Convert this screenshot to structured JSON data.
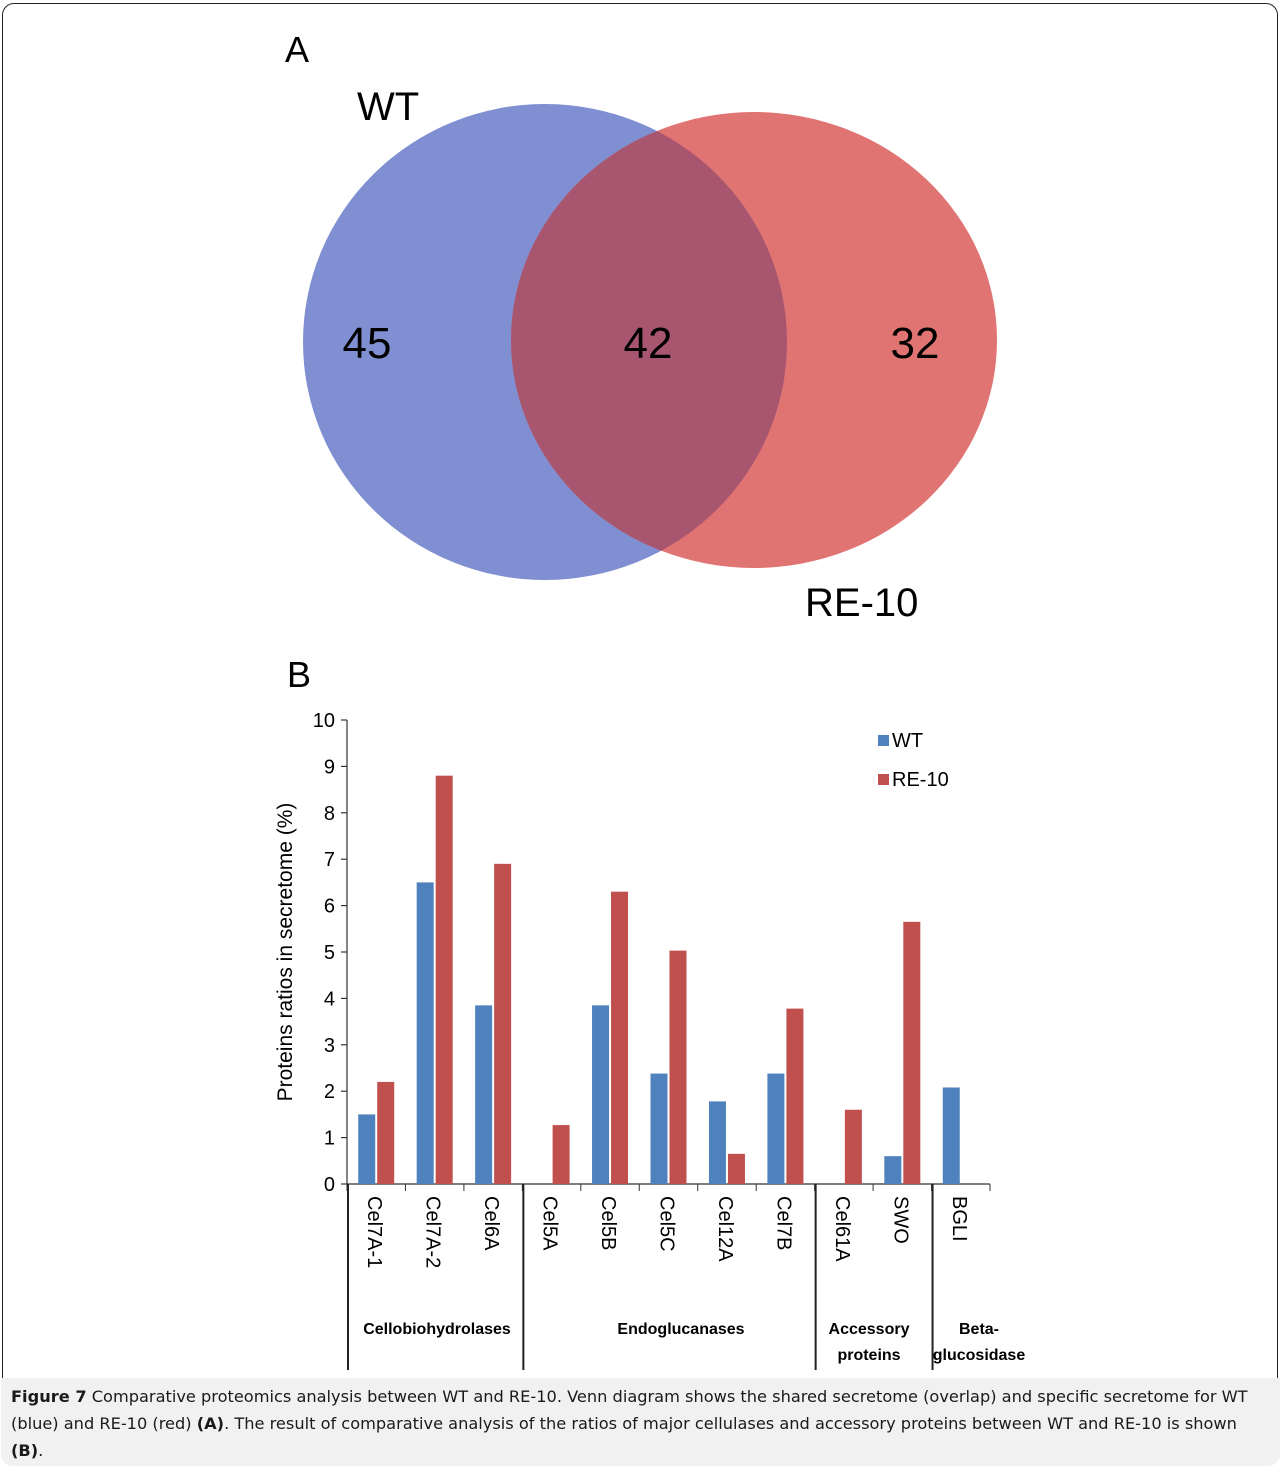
{
  "figure": {
    "panel_a_label": "A",
    "panel_b_label": "B"
  },
  "venn": {
    "set1_label": "WT",
    "set2_label": "RE-10",
    "only_set1": "45",
    "intersection": "42",
    "only_set2": "32",
    "colors": {
      "set1": "#7f8fd1",
      "set2": "#e07472",
      "overlap": "#a85670"
    }
  },
  "chart_data": {
    "type": "bar",
    "ylabel": "Proteins ratios in secretome (%)",
    "xlabel": "",
    "ylim": [
      0,
      10
    ],
    "yticks": [
      "0",
      "1",
      "2",
      "3",
      "4",
      "5",
      "6",
      "7",
      "8",
      "9",
      "10"
    ],
    "categories": [
      "Cel7A-1",
      "Cel7A-2",
      "Cel6A",
      "Cel5A",
      "Cel5B",
      "Cel5C",
      "Cel12A",
      "Cel7B",
      "Cel61A",
      "SWO",
      "BGLI"
    ],
    "series": [
      {
        "name": "WT",
        "color": "#4f81bd",
        "values": [
          1.5,
          6.5,
          3.85,
          0,
          3.85,
          2.38,
          1.78,
          2.38,
          0,
          0.6,
          2.08
        ]
      },
      {
        "name": "RE-10",
        "color": "#c0504d",
        "values": [
          2.2,
          8.8,
          6.9,
          1.27,
          6.3,
          5.03,
          0.65,
          3.78,
          1.6,
          5.65,
          null
        ]
      }
    ],
    "groups": [
      {
        "lines": [
          "Cellobiohydrolases"
        ]
      },
      {
        "lines": [
          "Endoglucanases"
        ]
      },
      {
        "lines": [
          "Accessory",
          "proteins"
        ]
      },
      {
        "lines": [
          "Beta-",
          "glucosidase"
        ]
      }
    ],
    "legend_position": "top-right"
  },
  "caption": {
    "label": "Figure 7",
    "text1": " Comparative proteomics analysis between WT and RE-10. Venn diagram shows the shared secretome (overlap) and specific secretome for WT (blue) and RE-10 (red) ",
    "ref_a": "(A)",
    "text2": ". The result of comparative analysis of the ratios of major cellulases and accessory proteins between WT and RE-10 is shown ",
    "ref_b": "(B)",
    "text3": "."
  }
}
